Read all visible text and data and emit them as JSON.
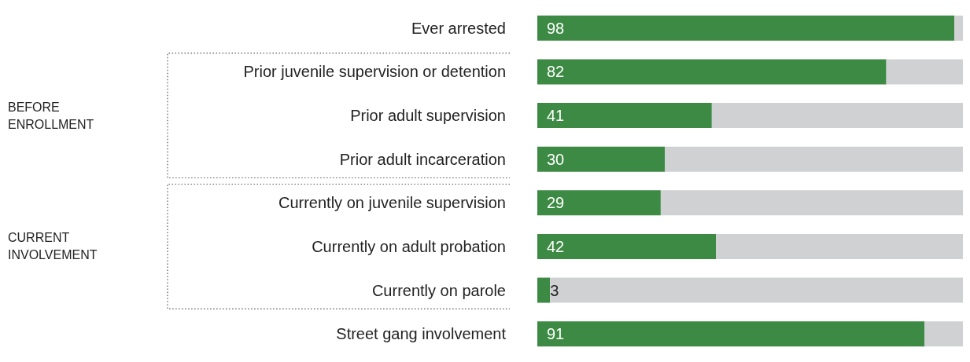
{
  "chart_data": {
    "type": "bar",
    "orientation": "horizontal",
    "stacked": true,
    "categories": [
      "Ever arrested",
      "Prior juvenile supervision or detention",
      "Prior adult supervision",
      "Prior adult incarceration",
      "Currently on juvenile supervision",
      "Currently on adult probation",
      "Currently on parole",
      "Street gang involvement"
    ],
    "series": [
      {
        "color": "#3c8a43",
        "values": [
          98,
          82,
          41,
          30,
          29,
          42,
          3,
          91
        ],
        "value_labels": [
          "98",
          "82",
          "41",
          "30",
          "29",
          "42",
          "3",
          "91"
        ]
      },
      {
        "color": "#d0d1d3",
        "values": [
          2,
          18,
          59,
          70,
          71,
          58,
          97,
          9
        ]
      }
    ],
    "xlim": [
      0,
      100
    ],
    "tick_labels": "y",
    "grid": false,
    "annotations": [
      "BEFORE ENROLLMENT",
      "CURRENT INVOLVEMENT"
    ]
  }
}
